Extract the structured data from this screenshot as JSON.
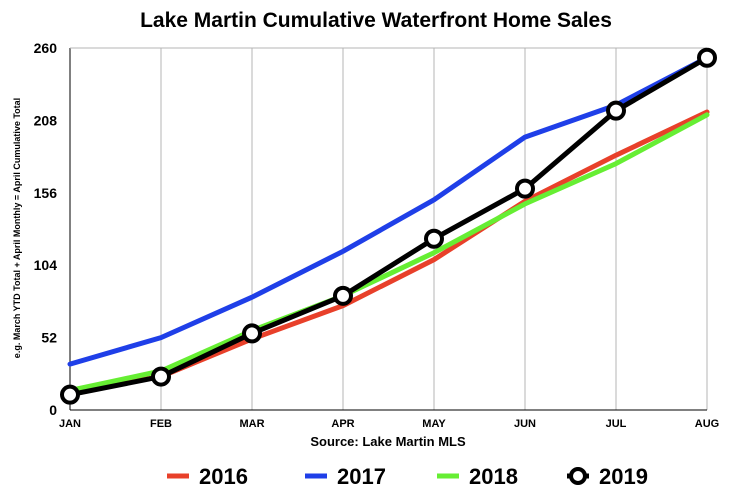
{
  "chart_data": {
    "type": "line",
    "title": "Lake Martin Cumulative Waterfront Home Sales",
    "xlabel": "Source: Lake Martin MLS",
    "ylabel": "e.g. March YTD Total + April Monthly = April Cumulative Total",
    "categories": [
      "JAN",
      "FEB",
      "MAR",
      "APR",
      "MAY",
      "JUN",
      "JUL",
      "AUG"
    ],
    "yticks": [
      "0",
      "52",
      "104",
      "156",
      "208",
      "260"
    ],
    "ylim": [
      0,
      260
    ],
    "grid": "vertical",
    "legend_position": "bottom",
    "series": [
      {
        "name": "2016",
        "color": "#e8402a",
        "marker": "none",
        "values": [
          13,
          24,
          51,
          75,
          108,
          150,
          183,
          214
        ]
      },
      {
        "name": "2017",
        "color": "#1f3fe8",
        "marker": "none",
        "values": [
          33,
          52,
          81,
          114,
          151,
          196,
          219,
          253
        ]
      },
      {
        "name": "2018",
        "color": "#66ee33",
        "marker": "none",
        "values": [
          14,
          28,
          57,
          82,
          113,
          148,
          177,
          212
        ]
      },
      {
        "name": "2019",
        "color": "#000000",
        "marker": "circle",
        "values": [
          11,
          24,
          55,
          82,
          123,
          159,
          215,
          253
        ]
      }
    ]
  }
}
